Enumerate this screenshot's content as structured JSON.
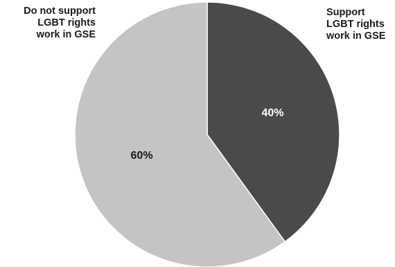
{
  "chart_data": {
    "type": "pie",
    "slices": [
      {
        "name_lines": [
          "Support",
          "LGBT rights",
          "work in GSE"
        ],
        "value": 40,
        "label": "40%",
        "color": "#4a4a4c",
        "label_color": "#ffffff"
      },
      {
        "name_lines": [
          "Do not support",
          "LGBT rights",
          "work in GSE"
        ],
        "value": 60,
        "label": "60%",
        "color": "#c3c4c6",
        "label_color": "#1a1a1a"
      }
    ],
    "start_angle": "12 o'clock",
    "direction": "clockwise"
  }
}
